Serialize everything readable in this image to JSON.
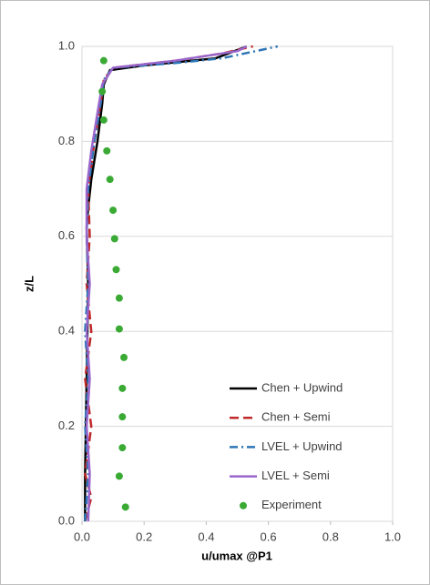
{
  "chart_data": {
    "type": "line",
    "xlabel": "u/umax @P1",
    "ylabel": "z/L",
    "xlim": [
      0,
      1
    ],
    "ylim": [
      0,
      1
    ],
    "xticks": [
      {
        "value": 0,
        "label": "0.0"
      },
      {
        "value": 0.2,
        "label": "0.2"
      },
      {
        "value": 0.4,
        "label": "0.4"
      },
      {
        "value": 0.6,
        "label": "0.6"
      },
      {
        "value": 0.8,
        "label": "0.8"
      },
      {
        "value": 1,
        "label": "1.0"
      }
    ],
    "yticks": [
      {
        "value": 0,
        "label": "0.0"
      },
      {
        "value": 0.2,
        "label": "0.2"
      },
      {
        "value": 0.4,
        "label": "0.4"
      },
      {
        "value": 0.6,
        "label": "0.6"
      },
      {
        "value": 0.8,
        "label": "0.8"
      },
      {
        "value": 1,
        "label": "1.0"
      }
    ],
    "grid": true,
    "legend": "right",
    "series": [
      {
        "name": "Chen + Upwind",
        "color": "#000000",
        "style": "solid",
        "x": [
          0.01,
          0.01,
          0.015,
          0.02,
          0.015,
          0.02,
          0.03,
          0.05,
          0.065,
          0.07,
          0.09,
          0.2,
          0.43,
          0.53
        ],
        "values": [
          0,
          0.1,
          0.3,
          0.5,
          0.62,
          0.66,
          0.72,
          0.8,
          0.88,
          0.92,
          0.95,
          0.96,
          0.975,
          1.0
        ]
      },
      {
        "name": "Chen + Semi",
        "color": "#c0282a",
        "style": "dash",
        "x": [
          0.01,
          0.03,
          0.01,
          0.03,
          0.01,
          0.03,
          0.015,
          0.025,
          0.02,
          0.04,
          0.06,
          0.07,
          0.1,
          0.3,
          0.45,
          0.55
        ],
        "values": [
          0,
          0.05,
          0.1,
          0.2,
          0.3,
          0.4,
          0.5,
          0.6,
          0.7,
          0.8,
          0.88,
          0.93,
          0.955,
          0.97,
          0.985,
          1.0
        ]
      },
      {
        "name": "LVEL + Upwind",
        "color": "#2e75b6",
        "style": "dashdot",
        "x": [
          0.01,
          0.02,
          0.01,
          0.02,
          0.01,
          0.02,
          0.015,
          0.02,
          0.04,
          0.06,
          0.07,
          0.1,
          0.3,
          0.45,
          0.63
        ],
        "values": [
          0,
          0.1,
          0.2,
          0.3,
          0.4,
          0.5,
          0.6,
          0.7,
          0.8,
          0.88,
          0.93,
          0.955,
          0.965,
          0.975,
          1.0
        ]
      },
      {
        "name": "LVEL + Semi",
        "color": "#9966cc",
        "style": "solid",
        "x": [
          0.02,
          0.025,
          0.015,
          0.025,
          0.015,
          0.025,
          0.015,
          0.015,
          0.03,
          0.05,
          0.065,
          0.1,
          0.3,
          0.5,
          0.53
        ],
        "values": [
          0,
          0.1,
          0.2,
          0.3,
          0.4,
          0.5,
          0.6,
          0.7,
          0.78,
          0.86,
          0.92,
          0.955,
          0.97,
          0.99,
          1.0
        ]
      },
      {
        "name": "Experiment",
        "color": "#3aaa35",
        "style": "marker",
        "x": [
          0.14,
          0.12,
          0.13,
          0.13,
          0.13,
          0.135,
          0.12,
          0.12,
          0.11,
          0.105,
          0.1,
          0.09,
          0.08,
          0.07,
          0.065,
          0.07
        ],
        "values": [
          0.03,
          0.095,
          0.155,
          0.22,
          0.28,
          0.345,
          0.405,
          0.47,
          0.53,
          0.595,
          0.655,
          0.72,
          0.78,
          0.845,
          0.905,
          0.97
        ]
      }
    ]
  }
}
